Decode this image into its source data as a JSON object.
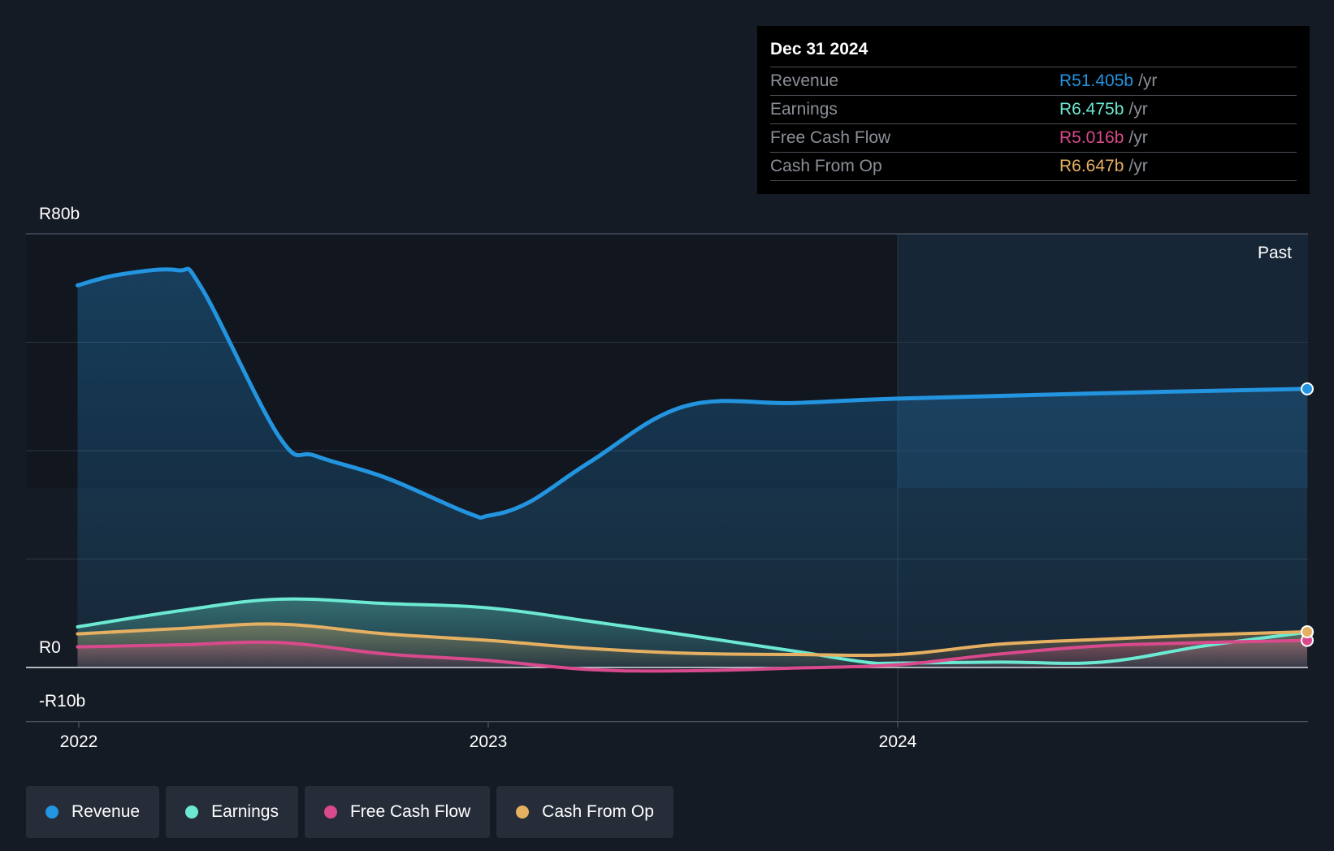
{
  "tooltip": {
    "date": "Dec 31 2024",
    "unit": "/yr",
    "rows": [
      {
        "label": "Revenue",
        "value": "R51.405b"
      },
      {
        "label": "Earnings",
        "value": "R6.475b"
      },
      {
        "label": "Free Cash Flow",
        "value": "R5.016b"
      },
      {
        "label": "Cash From Op",
        "value": "R6.647b"
      }
    ]
  },
  "past_label": "Past",
  "legend": [
    {
      "label": "Revenue",
      "color": "#2394df"
    },
    {
      "label": "Earnings",
      "color": "#6ce9d3"
    },
    {
      "label": "Free Cash Flow",
      "color": "#d94a8c"
    },
    {
      "label": "Cash From Op",
      "color": "#e6b062"
    }
  ],
  "chart_data": {
    "type": "line",
    "title": "",
    "ylim": [
      -10,
      80
    ],
    "y_tick_labels": [
      {
        "value": 80,
        "label": "R80b"
      },
      {
        "value": 0,
        "label": "R0"
      },
      {
        "value": -10,
        "label": "-R10b"
      }
    ],
    "gridlines": [
      80,
      60,
      40,
      20,
      0,
      -10
    ],
    "x_tick_labels": [
      {
        "value": 2022.0,
        "label": "2022"
      },
      {
        "value": 2023.0,
        "label": "2023"
      },
      {
        "value": 2024.0,
        "label": "2024"
      }
    ],
    "xlim": [
      2021.87,
      2025.0
    ],
    "past_region_start": 2024.0,
    "series": [
      {
        "name": "Revenue",
        "color": "#2394df",
        "x": [
          2021.997,
          2022.1,
          2022.24,
          2022.3,
          2022.49,
          2022.58,
          2022.75,
          2022.95,
          2023.0,
          2023.1,
          2023.25,
          2023.48,
          2023.75,
          2024.0,
          2024.5,
          2025.0
        ],
        "y": [
          70.5,
          72.5,
          73.3,
          70.0,
          42.5,
          39.0,
          35.0,
          28.5,
          28.0,
          30.5,
          38.0,
          48.2,
          48.8,
          49.6,
          50.6,
          51.4
        ]
      },
      {
        "name": "Earnings",
        "color": "#6ce9d3",
        "x": [
          2021.997,
          2022.25,
          2022.49,
          2022.75,
          2023.0,
          2023.25,
          2023.5,
          2023.75,
          2023.92,
          2024.0,
          2024.25,
          2024.5,
          2024.75,
          2025.0
        ],
        "y": [
          7.5,
          10.5,
          12.6,
          11.8,
          11.0,
          8.5,
          5.8,
          3.0,
          1.0,
          0.8,
          1.0,
          1.0,
          4.0,
          6.5
        ]
      },
      {
        "name": "Free Cash Flow",
        "color": "#d94a8c",
        "x": [
          2021.997,
          2022.25,
          2022.49,
          2022.75,
          2023.0,
          2023.25,
          2023.5,
          2023.75,
          2024.0,
          2024.25,
          2024.5,
          2024.75,
          2025.0
        ],
        "y": [
          3.8,
          4.2,
          4.6,
          2.5,
          1.3,
          -0.4,
          -0.6,
          -0.1,
          0.5,
          2.5,
          4.0,
          4.6,
          5.0
        ]
      },
      {
        "name": "Cash From Op",
        "color": "#e6b062",
        "x": [
          2021.997,
          2022.25,
          2022.49,
          2022.75,
          2023.0,
          2023.25,
          2023.5,
          2023.75,
          2024.0,
          2024.25,
          2024.5,
          2024.75,
          2025.0
        ],
        "y": [
          6.2,
          7.2,
          8.0,
          6.2,
          5.0,
          3.5,
          2.6,
          2.4,
          2.4,
          4.3,
          5.2,
          6.0,
          6.6
        ]
      }
    ]
  }
}
